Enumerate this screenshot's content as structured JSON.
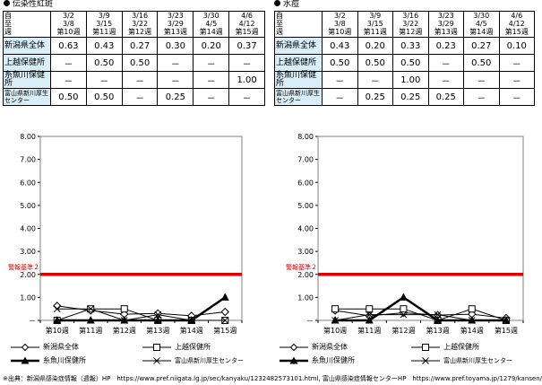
{
  "footer": {
    "source": "※出典：新潟県感染症情報（週報）HP　https://www.pref.niigata.lg.jp/sec/kanyaku/1232482573101.html, 富山県感染症情報センターHP　https://www.pref.toyama.jp/1279/kansen/"
  },
  "row_labels": {
    "from": "自",
    "to": "至",
    "week": "週"
  },
  "panels": [
    {
      "title": "伝染性紅斑",
      "header": {
        "from": [
          "3/2",
          "3/9",
          "3/16",
          "3/23",
          "3/30",
          "4/6"
        ],
        "to": [
          "3/8",
          "3/15",
          "3/22",
          "3/29",
          "4/5",
          "4/12"
        ],
        "weeks": [
          "第10週",
          "第11週",
          "第12週",
          "第13週",
          "第14週",
          "第15週"
        ]
      },
      "rows": [
        {
          "name": "新潟県全体",
          "cells": [
            "0.63",
            "0.43",
            "0.27",
            "0.30",
            "0.20",
            "0.37"
          ]
        },
        {
          "name": "上越保健所",
          "cells": [
            "－",
            "0.50",
            "0.50",
            "－",
            "－",
            "－"
          ]
        },
        {
          "name": "糸魚川保健所",
          "cells": [
            "－",
            "－",
            "－",
            "－",
            "－",
            "1.00"
          ]
        },
        {
          "name": "富山県新川厚生センター",
          "cells": [
            "0.50",
            "0.50",
            "－",
            "0.25",
            "－",
            "－"
          ]
        }
      ]
    },
    {
      "title": "水痘",
      "header": {
        "from": [
          "3/2",
          "3/9",
          "3/16",
          "3/23",
          "3/30",
          "4/6"
        ],
        "to": [
          "3/8",
          "3/15",
          "3/22",
          "3/29",
          "4/5",
          "4/12"
        ],
        "weeks": [
          "第10週",
          "第11週",
          "第12週",
          "第13週",
          "第14週",
          "第15週"
        ]
      },
      "rows": [
        {
          "name": "新潟県全体",
          "cells": [
            "0.43",
            "0.20",
            "0.33",
            "0.23",
            "0.27",
            "0.10"
          ]
        },
        {
          "name": "上越保健所",
          "cells": [
            "0.50",
            "0.50",
            "0.50",
            "－",
            "0.50",
            "－"
          ]
        },
        {
          "name": "糸魚川保健所",
          "cells": [
            "－",
            "－",
            "1.00",
            "－",
            "－",
            "－"
          ]
        },
        {
          "name": "富山県新川厚生センター",
          "cells": [
            "－",
            "0.25",
            "0.25",
            "0.25",
            "－",
            "－"
          ]
        }
      ]
    }
  ],
  "chart_data": [
    {
      "type": "line",
      "categories": [
        "第10週",
        "第11週",
        "第12週",
        "第13週",
        "第14週",
        "第15週"
      ],
      "ylim": [
        0,
        8
      ],
      "yticks": [
        "－",
        "1.00",
        "2.00",
        "3.00",
        "4.00",
        "5.00",
        "6.00",
        "7.00",
        "8.00"
      ],
      "threshold": {
        "label": "警報基準２",
        "value": 2,
        "color": "#e00000"
      },
      "series": [
        {
          "name": "新潟県全体",
          "values": [
            0.63,
            0.43,
            0.27,
            0.3,
            0.2,
            0.37
          ],
          "marker": "diamond"
        },
        {
          "name": "上越保健所",
          "values": [
            0,
            0.5,
            0.5,
            0,
            0,
            0
          ],
          "marker": "square"
        },
        {
          "name": "糸魚川保健所",
          "values": [
            0,
            0,
            0,
            0,
            0,
            1.0
          ],
          "marker": "triangle"
        },
        {
          "name": "富山県新川厚生センター",
          "values": [
            0.5,
            0.5,
            0,
            0.25,
            0,
            0
          ],
          "marker": "x"
        }
      ]
    },
    {
      "type": "line",
      "categories": [
        "第10週",
        "第11週",
        "第12週",
        "第13週",
        "第14週",
        "第15週"
      ],
      "ylim": [
        0,
        8
      ],
      "yticks": [
        "－",
        "1.00",
        "2.00",
        "3.00",
        "4.00",
        "5.00",
        "6.00",
        "7.00",
        "8.00"
      ],
      "threshold": {
        "label": "警報基準２",
        "value": 2,
        "color": "#e00000"
      },
      "series": [
        {
          "name": "新潟県全体",
          "values": [
            0.43,
            0.2,
            0.33,
            0.23,
            0.27,
            0.1
          ],
          "marker": "diamond"
        },
        {
          "name": "上越保健所",
          "values": [
            0.5,
            0.5,
            0.5,
            0,
            0.5,
            0
          ],
          "marker": "square"
        },
        {
          "name": "糸魚川保健所",
          "values": [
            0,
            0,
            1.0,
            0,
            0,
            0
          ],
          "marker": "triangle"
        },
        {
          "name": "富山県新川厚生センター",
          "values": [
            0,
            0.25,
            0.25,
            0.25,
            0,
            0
          ],
          "marker": "x"
        }
      ]
    }
  ]
}
